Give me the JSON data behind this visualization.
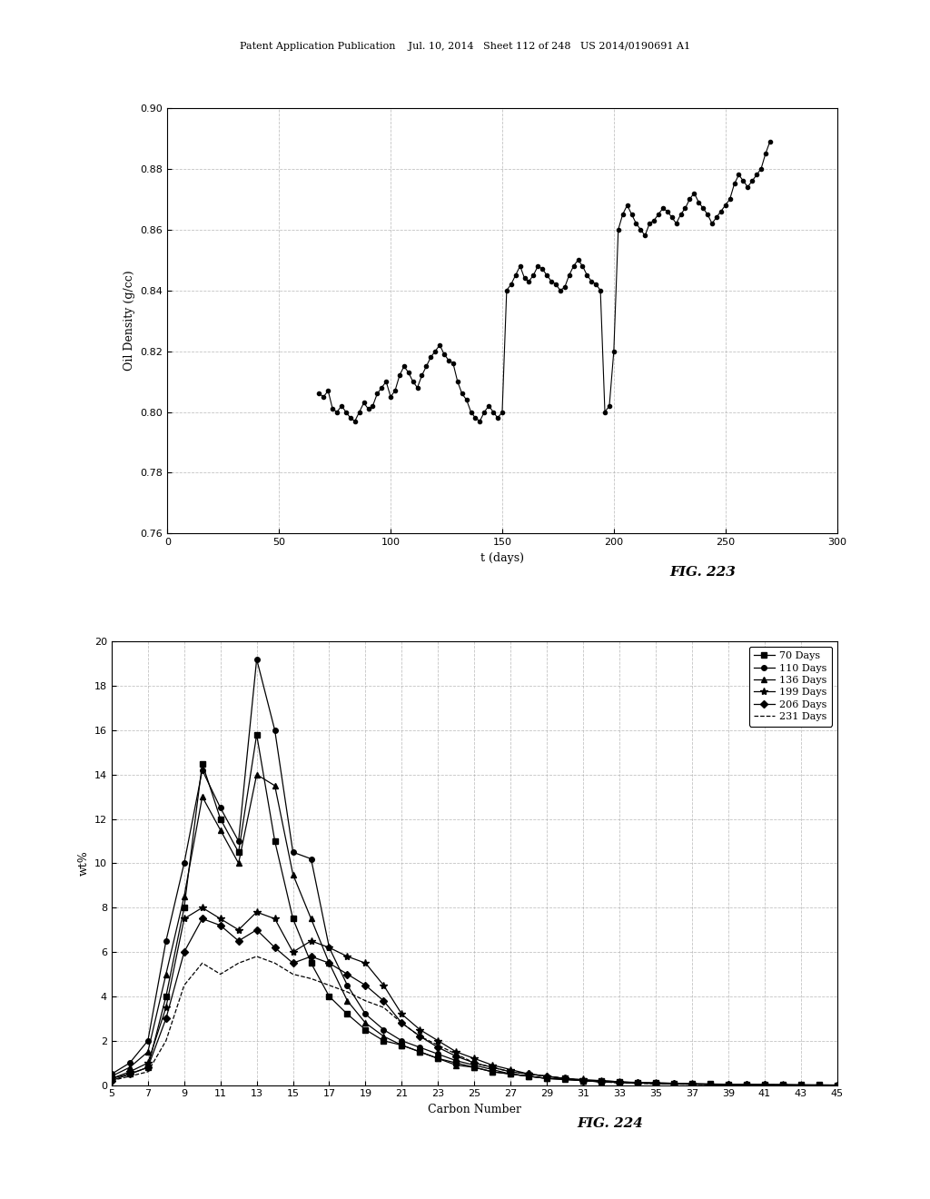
{
  "fig223": {
    "title": "",
    "xlabel": "t (days)",
    "ylabel": "Oil Density (g/cc)",
    "fig_label": "FIG. 223",
    "xlim": [
      0,
      300
    ],
    "ylim": [
      0.76,
      0.9
    ],
    "yticks": [
      0.76,
      0.78,
      0.8,
      0.82,
      0.84,
      0.86,
      0.88,
      0.9
    ],
    "xticks": [
      0,
      50,
      100,
      150,
      200,
      250,
      300
    ],
    "data_x": [
      68,
      70,
      72,
      74,
      76,
      78,
      80,
      82,
      84,
      86,
      88,
      90,
      92,
      94,
      96,
      98,
      100,
      102,
      104,
      106,
      108,
      110,
      112,
      114,
      116,
      118,
      120,
      122,
      124,
      126,
      128,
      130,
      132,
      134,
      136,
      138,
      140,
      142,
      144,
      146,
      148,
      150,
      152,
      154,
      156,
      158,
      160,
      162,
      164,
      166,
      168,
      170,
      172,
      174,
      176,
      178,
      180,
      182,
      184,
      186,
      188,
      190,
      192,
      194,
      196,
      198,
      200,
      202,
      204,
      206,
      208,
      210,
      212,
      214,
      216,
      218,
      220,
      222,
      224,
      226,
      228,
      230,
      232,
      234,
      236,
      238,
      240,
      242,
      244,
      246,
      248,
      250,
      252,
      254,
      256,
      258,
      260,
      262,
      264,
      266,
      268,
      270
    ],
    "data_y": [
      0.806,
      0.805,
      0.807,
      0.801,
      0.8,
      0.802,
      0.8,
      0.798,
      0.797,
      0.8,
      0.803,
      0.801,
      0.802,
      0.806,
      0.808,
      0.81,
      0.805,
      0.807,
      0.812,
      0.815,
      0.813,
      0.81,
      0.808,
      0.812,
      0.815,
      0.818,
      0.82,
      0.822,
      0.819,
      0.817,
      0.816,
      0.81,
      0.806,
      0.804,
      0.8,
      0.798,
      0.797,
      0.8,
      0.802,
      0.8,
      0.798,
      0.8,
      0.84,
      0.842,
      0.845,
      0.848,
      0.844,
      0.843,
      0.845,
      0.848,
      0.847,
      0.845,
      0.843,
      0.842,
      0.84,
      0.841,
      0.845,
      0.848,
      0.85,
      0.848,
      0.845,
      0.843,
      0.842,
      0.84,
      0.8,
      0.802,
      0.82,
      0.86,
      0.865,
      0.868,
      0.865,
      0.862,
      0.86,
      0.858,
      0.862,
      0.863,
      0.865,
      0.867,
      0.866,
      0.864,
      0.862,
      0.865,
      0.867,
      0.87,
      0.872,
      0.869,
      0.867,
      0.865,
      0.862,
      0.864,
      0.866,
      0.868,
      0.87,
      0.875,
      0.878,
      0.876,
      0.874,
      0.876,
      0.878,
      0.88,
      0.885,
      0.889
    ]
  },
  "fig224": {
    "title": "",
    "xlabel": "Carbon Number",
    "ylabel": "wt%",
    "fig_label": "FIG. 224",
    "xlim": [
      5,
      45
    ],
    "ylim": [
      0,
      20
    ],
    "yticks": [
      0,
      2,
      4,
      6,
      8,
      10,
      12,
      14,
      16,
      18,
      20
    ],
    "xticks": [
      5,
      7,
      9,
      11,
      13,
      15,
      17,
      19,
      21,
      23,
      25,
      27,
      29,
      31,
      33,
      35,
      37,
      39,
      41,
      43,
      45
    ],
    "series": [
      {
        "label": "70 Days",
        "marker": "s",
        "linestyle": "-",
        "color": "#000000",
        "x": [
          5,
          6,
          7,
          8,
          9,
          10,
          11,
          12,
          13,
          14,
          15,
          16,
          17,
          18,
          19,
          20,
          21,
          22,
          23,
          24,
          25,
          26,
          27,
          28,
          29,
          30,
          31,
          32,
          33,
          34,
          35,
          36,
          37,
          38,
          39,
          40,
          41,
          42,
          43,
          44,
          45
        ],
        "y": [
          0.3,
          0.5,
          0.8,
          4.0,
          8.0,
          14.5,
          12.0,
          10.5,
          15.8,
          11.0,
          7.5,
          5.5,
          4.0,
          3.2,
          2.5,
          2.0,
          1.8,
          1.5,
          1.2,
          1.0,
          0.8,
          0.6,
          0.5,
          0.4,
          0.3,
          0.3,
          0.2,
          0.2,
          0.15,
          0.1,
          0.1,
          0.08,
          0.06,
          0.05,
          0.04,
          0.03,
          0.02,
          0.02,
          0.01,
          0.01,
          0.0
        ]
      },
      {
        "label": "110 Days",
        "marker": "o",
        "linestyle": "-",
        "color": "#000000",
        "x": [
          5,
          6,
          7,
          8,
          9,
          10,
          11,
          12,
          13,
          14,
          15,
          16,
          17,
          18,
          19,
          20,
          21,
          22,
          23,
          24,
          25,
          26,
          27,
          28,
          29,
          30,
          31,
          32,
          33,
          34,
          35,
          36,
          37,
          38,
          39,
          40,
          41,
          42,
          43,
          44,
          45
        ],
        "y": [
          0.5,
          1.0,
          2.0,
          6.5,
          10.0,
          14.2,
          12.5,
          11.0,
          19.2,
          16.0,
          10.5,
          10.2,
          6.2,
          4.5,
          3.2,
          2.5,
          2.0,
          1.7,
          1.4,
          1.1,
          0.9,
          0.7,
          0.5,
          0.4,
          0.3,
          0.25,
          0.2,
          0.15,
          0.12,
          0.1,
          0.08,
          0.06,
          0.05,
          0.04,
          0.03,
          0.02,
          0.02,
          0.01,
          0.01,
          0.0,
          0.0
        ]
      },
      {
        "label": "136 Days",
        "marker": "^",
        "linestyle": "-",
        "color": "#000000",
        "x": [
          5,
          6,
          7,
          8,
          9,
          10,
          11,
          12,
          13,
          14,
          15,
          16,
          17,
          18,
          19,
          20,
          21,
          22,
          23,
          24,
          25,
          26,
          27,
          28,
          29,
          30,
          31,
          32,
          33,
          34,
          35,
          36,
          37,
          38,
          39,
          40,
          41,
          42,
          43,
          44,
          45
        ],
        "y": [
          0.4,
          0.8,
          1.5,
          5.0,
          8.5,
          13.0,
          11.5,
          10.0,
          14.0,
          13.5,
          9.5,
          7.5,
          5.5,
          3.8,
          2.8,
          2.2,
          1.8,
          1.5,
          1.2,
          0.9,
          0.8,
          0.6,
          0.5,
          0.4,
          0.3,
          0.25,
          0.2,
          0.15,
          0.12,
          0.1,
          0.08,
          0.06,
          0.05,
          0.04,
          0.03,
          0.02,
          0.01,
          0.01,
          0.0,
          0.0,
          0.0
        ]
      },
      {
        "label": "199 Days",
        "marker": "*",
        "linestyle": "-",
        "color": "#000000",
        "x": [
          5,
          6,
          7,
          8,
          9,
          10,
          11,
          12,
          13,
          14,
          15,
          16,
          17,
          18,
          19,
          20,
          21,
          22,
          23,
          24,
          25,
          26,
          27,
          28,
          29,
          30,
          31,
          32,
          33,
          34,
          35,
          36,
          37,
          38,
          39,
          40,
          41,
          42,
          43,
          44,
          45
        ],
        "y": [
          0.3,
          0.6,
          1.0,
          3.5,
          7.5,
          8.0,
          7.5,
          7.0,
          7.8,
          7.5,
          6.0,
          6.5,
          6.2,
          5.8,
          5.5,
          4.5,
          3.2,
          2.5,
          2.0,
          1.5,
          1.2,
          0.9,
          0.7,
          0.5,
          0.4,
          0.3,
          0.25,
          0.2,
          0.15,
          0.12,
          0.1,
          0.08,
          0.05,
          0.04,
          0.03,
          0.02,
          0.01,
          0.01,
          0.0,
          0.0,
          0.0
        ]
      },
      {
        "label": "206 Days",
        "marker": "D",
        "linestyle": "-",
        "color": "#000000",
        "x": [
          5,
          6,
          7,
          8,
          9,
          10,
          11,
          12,
          13,
          14,
          15,
          16,
          17,
          18,
          19,
          20,
          21,
          22,
          23,
          24,
          25,
          26,
          27,
          28,
          29,
          30,
          31,
          32,
          33,
          34,
          35,
          36,
          37,
          38,
          39,
          40,
          41,
          42,
          43,
          44,
          45
        ],
        "y": [
          0.2,
          0.5,
          0.8,
          3.0,
          6.0,
          7.5,
          7.2,
          6.5,
          7.0,
          6.2,
          5.5,
          5.8,
          5.5,
          5.0,
          4.5,
          3.8,
          2.8,
          2.2,
          1.7,
          1.3,
          1.0,
          0.8,
          0.6,
          0.5,
          0.4,
          0.3,
          0.2,
          0.15,
          0.12,
          0.09,
          0.07,
          0.05,
          0.04,
          0.03,
          0.02,
          0.01,
          0.01,
          0.0,
          0.0,
          0.0,
          0.0
        ]
      },
      {
        "label": "231 Days",
        "marker": "None",
        "linestyle": "--",
        "color": "#000000",
        "x": [
          5,
          6,
          7,
          8,
          9,
          10,
          11,
          12,
          13,
          14,
          15,
          16,
          17,
          18,
          19,
          20,
          21,
          22,
          23,
          24,
          25,
          26,
          27,
          28,
          29,
          30,
          31,
          32,
          33,
          34,
          35,
          36,
          37,
          38,
          39,
          40,
          41,
          42,
          43,
          44,
          45
        ],
        "y": [
          0.2,
          0.4,
          0.6,
          2.0,
          4.5,
          5.5,
          5.0,
          5.5,
          5.8,
          5.5,
          5.0,
          4.8,
          4.5,
          4.2,
          3.8,
          3.5,
          2.8,
          2.2,
          1.8,
          1.4,
          1.0,
          0.8,
          0.6,
          0.5,
          0.4,
          0.3,
          0.2,
          0.15,
          0.1,
          0.08,
          0.06,
          0.05,
          0.04,
          0.03,
          0.02,
          0.01,
          0.01,
          0.0,
          0.0,
          0.0,
          0.0
        ]
      }
    ]
  },
  "header_text": "Patent Application Publication    Jul. 10, 2014   Sheet 112 of 248   US 2014/0190691 A1",
  "background_color": "#ffffff",
  "grid_color": "#aaaaaa",
  "grid_linestyle": "--"
}
